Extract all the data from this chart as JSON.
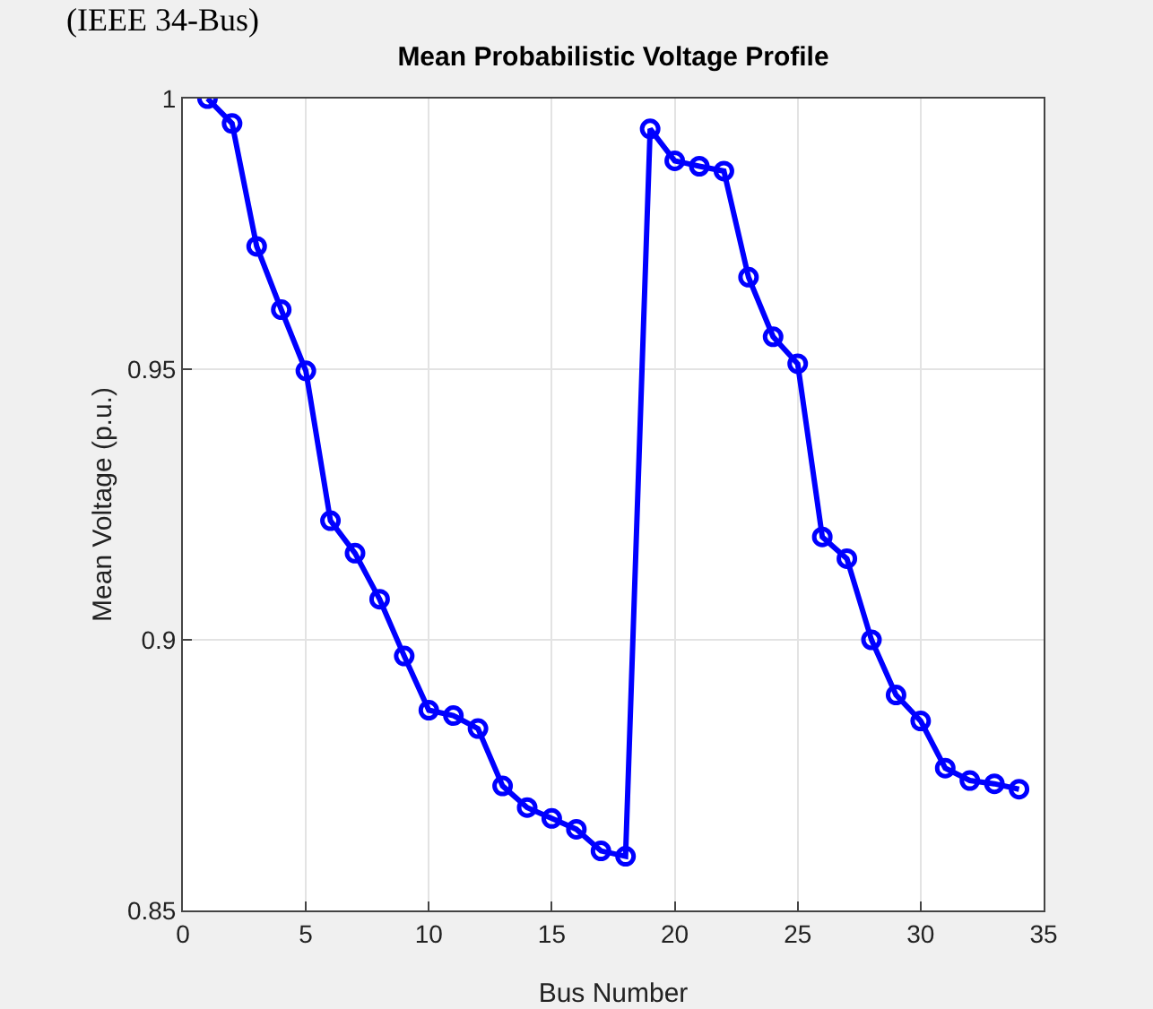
{
  "chart_data": {
    "type": "line",
    "title": "Mean Probabilistic Voltage Profile",
    "xlabel": "Bus Number",
    "ylabel": "Mean Voltage (p.u.)",
    "annotations": [
      "(IEEE 34-Bus)"
    ],
    "x": [
      1,
      2,
      3,
      4,
      5,
      6,
      7,
      8,
      9,
      10,
      11,
      12,
      13,
      14,
      15,
      16,
      17,
      18,
      19,
      20,
      21,
      22,
      23,
      24,
      25,
      26,
      27,
      28,
      29,
      30,
      31,
      32,
      33,
      34
    ],
    "series": [
      {
        "color": "#0000ff",
        "values": [
          1.0,
          0.9954,
          0.9727,
          0.961,
          0.9497,
          0.922,
          0.916,
          0.9075,
          0.897,
          0.887,
          0.886,
          0.8836,
          0.873,
          0.869,
          0.867,
          0.865,
          0.861,
          0.86,
          0.9944,
          0.9885,
          0.9875,
          0.9866,
          0.967,
          0.956,
          0.951,
          0.919,
          0.915,
          0.9,
          0.8898,
          0.885,
          0.8763,
          0.874,
          0.8734,
          0.8724
        ]
      }
    ],
    "xlim": [
      0,
      35
    ],
    "xticks": [
      0,
      5,
      10,
      15,
      20,
      25,
      30,
      35
    ],
    "ylim": [
      0.85,
      1
    ],
    "yticks": [
      0.85,
      0.9,
      0.95,
      1
    ],
    "grid": true,
    "marker": "circle",
    "line_style": "solid"
  }
}
